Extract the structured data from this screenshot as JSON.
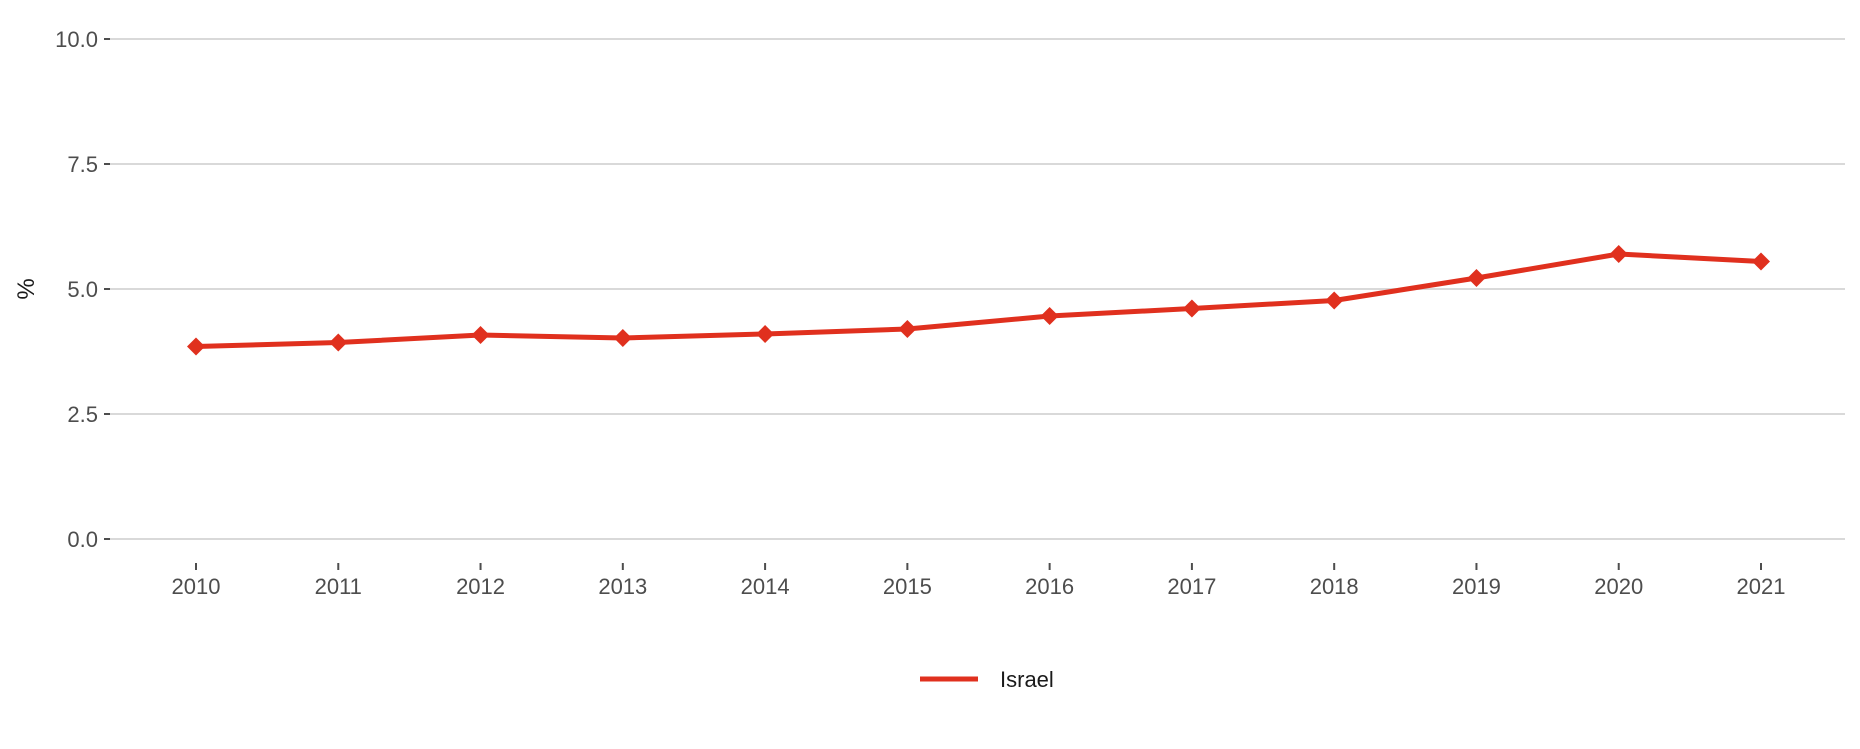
{
  "chart_data": {
    "type": "line",
    "title": "",
    "xlabel": "",
    "ylabel": "%",
    "x": [
      2010,
      2011,
      2012,
      2013,
      2014,
      2015,
      2016,
      2017,
      2018,
      2019,
      2020,
      2021
    ],
    "ylim": [
      0,
      10
    ],
    "yticks": [
      "0.0",
      "2.5",
      "5.0",
      "7.5",
      "10.0"
    ],
    "grid": "horizontal",
    "legend_position": "bottom",
    "series": [
      {
        "name": "Israel",
        "color": "#e0301e",
        "marker": "diamond",
        "values": [
          3.85,
          3.93,
          4.08,
          4.02,
          4.1,
          4.2,
          4.46,
          4.61,
          4.77,
          5.22,
          5.7,
          5.55
        ]
      }
    ]
  }
}
